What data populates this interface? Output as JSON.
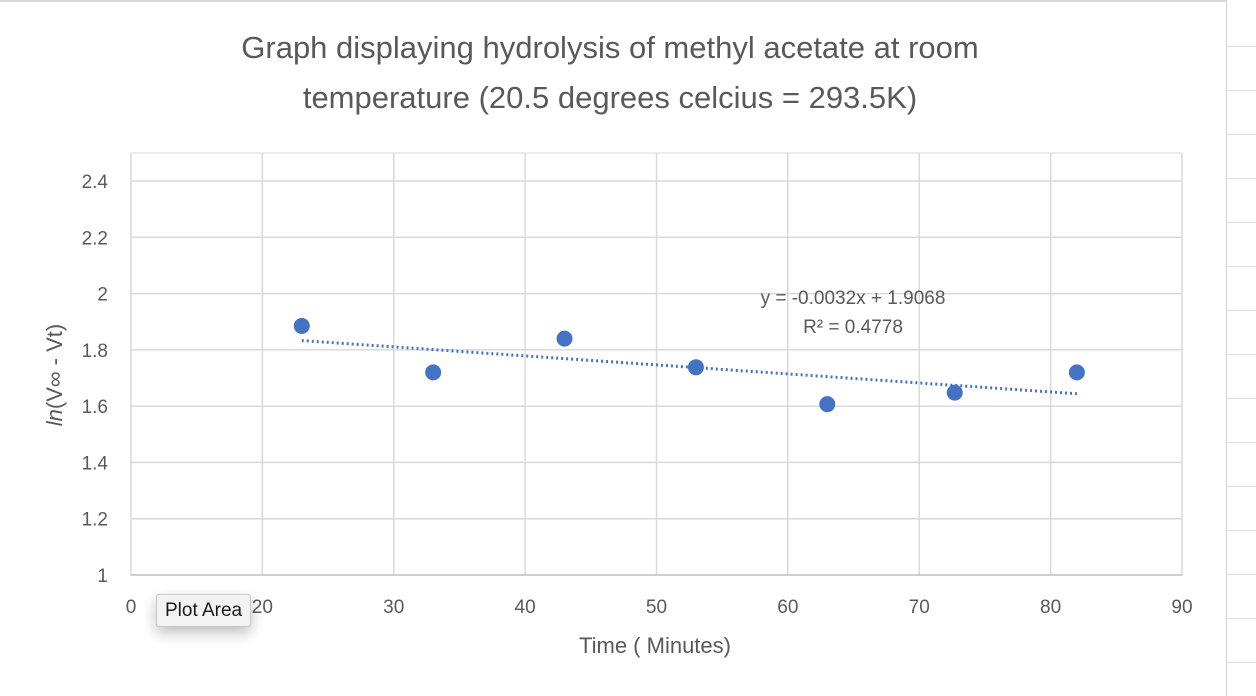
{
  "chart_data": {
    "type": "scatter",
    "title_lines": [
      "Graph displaying hydrolysis of methyl acetate at room",
      "temperature (20.5 degrees celcius = 293.5K)"
    ],
    "xlabel": "Time ( Minutes)",
    "ylabel_parts": {
      "italic": "ln",
      "rest": "(V∞ - Vt)"
    },
    "xlim": [
      10,
      90
    ],
    "ylim": [
      1,
      2.4
    ],
    "x_ticks": [
      {
        "value": 20,
        "label": "20"
      },
      {
        "value": 30,
        "label": "30"
      },
      {
        "value": 40,
        "label": "40"
      },
      {
        "value": 50,
        "label": "50"
      },
      {
        "value": 60,
        "label": "60"
      },
      {
        "value": 70,
        "label": "70"
      },
      {
        "value": 80,
        "label": "80"
      },
      {
        "value": 90,
        "label": "90"
      }
    ],
    "x_origin_label": "0",
    "y_ticks": [
      {
        "value": 1,
        "label": "1"
      },
      {
        "value": 1.2,
        "label": "1.2"
      },
      {
        "value": 1.4,
        "label": "1.4"
      },
      {
        "value": 1.6,
        "label": "1.6"
      },
      {
        "value": 1.8,
        "label": "1.8"
      },
      {
        "value": 2,
        "label": "2"
      },
      {
        "value": 2.2,
        "label": "2.2"
      },
      {
        "value": 2.4,
        "label": "2.4"
      }
    ],
    "x_gridlines": [
      10,
      20,
      30,
      40,
      50,
      60,
      70,
      80,
      90
    ],
    "y_gridlines": [
      1.2,
      1.4,
      1.6,
      1.8,
      2,
      2.2,
      2.4
    ],
    "grid": true,
    "series": [
      {
        "points": [
          {
            "x": 23,
            "y": 1.885
          },
          {
            "x": 33,
            "y": 1.72
          },
          {
            "x": 43,
            "y": 1.84
          },
          {
            "x": 53,
            "y": 1.738
          },
          {
            "x": 63,
            "y": 1.607
          },
          {
            "x": 72.7,
            "y": 1.648
          },
          {
            "x": 82,
            "y": 1.72
          }
        ],
        "color": "#4472c4"
      }
    ],
    "trendline": {
      "type": "linear",
      "x_range": [
        23,
        82
      ],
      "y_range": [
        1.833,
        1.644
      ],
      "color": "#4472c4",
      "style": "dotted",
      "equation": "y = -0.0032x + 1.9068",
      "r_squared": "R² = 0.4778"
    }
  },
  "tooltip": {
    "label": "Plot Area"
  }
}
